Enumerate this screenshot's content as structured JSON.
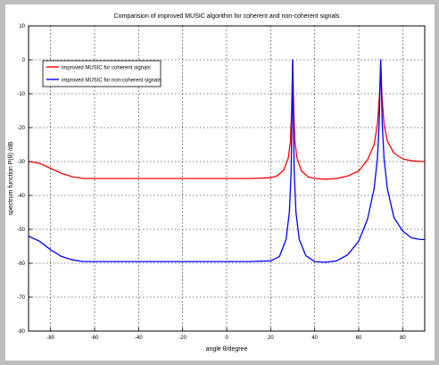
{
  "chart_data": {
    "type": "line",
    "title": "Comparision of improved MUSIC algorithm for coherent and non-coherent signals",
    "xlabel": "angle θ/degree",
    "ylabel": "spectrum function P(θ) /dB",
    "xlim": [
      -90,
      90
    ],
    "ylim": [
      -80,
      10
    ],
    "xticks": [
      "-80",
      "-60",
      "-40",
      "-20",
      "0",
      "20",
      "40",
      "60",
      "80"
    ],
    "yticks": [
      "10",
      "0",
      "-10",
      "-20",
      "-30",
      "-40",
      "-50",
      "-60",
      "-70",
      "-80"
    ],
    "grid": true,
    "legend_position": "top-left",
    "series": [
      {
        "name": "improved MUSIC for coherent signals",
        "color": "#ff0000",
        "x": [
          -90,
          -85,
          -80,
          -75,
          -70,
          -65,
          -60,
          -40,
          -20,
          0,
          10,
          20,
          23,
          26,
          28,
          29,
          29.5,
          30,
          30.5,
          31,
          32,
          34,
          37,
          40,
          45,
          50,
          55,
          60,
          64,
          67,
          68.5,
          69.5,
          70,
          70.5,
          71.5,
          73,
          76,
          80,
          84,
          88,
          90
        ],
        "values": [
          -30,
          -30.5,
          -32,
          -33.5,
          -34.5,
          -35,
          -35,
          -35,
          -35,
          -35,
          -35,
          -34.8,
          -34.2,
          -32.5,
          -29,
          -24,
          -15,
          0,
          -15,
          -24,
          -29,
          -32.8,
          -34.5,
          -35,
          -35.2,
          -35,
          -34.3,
          -32.8,
          -29.5,
          -25,
          -19,
          -10,
          0,
          -10,
          -19,
          -24,
          -27.5,
          -29.2,
          -29.8,
          -30,
          -30
        ]
      },
      {
        "name": "improved MUSIC for non-coherent signals",
        "color": "#0000ff",
        "x": [
          -90,
          -85,
          -80,
          -75,
          -70,
          -65,
          -60,
          -40,
          -20,
          0,
          10,
          20,
          24,
          27,
          28.5,
          29.3,
          29.7,
          30,
          30.3,
          30.7,
          31.5,
          33,
          36,
          40,
          45,
          50,
          55,
          60,
          64,
          67,
          68.5,
          69.3,
          69.7,
          70,
          70.3,
          70.7,
          71.5,
          73,
          76,
          80,
          84,
          88,
          90
        ],
        "values": [
          -52,
          -53.5,
          -56,
          -58,
          -59,
          -59.5,
          -59.5,
          -59.5,
          -59.5,
          -59.5,
          -59.5,
          -59.3,
          -58,
          -53,
          -45,
          -33,
          -15,
          0,
          -15,
          -33,
          -45,
          -53,
          -57.8,
          -59.5,
          -59.7,
          -59.3,
          -57.5,
          -53.5,
          -47,
          -38,
          -29,
          -19,
          -8,
          0,
          -8,
          -19,
          -29,
          -38,
          -46.5,
          -50.5,
          -52.5,
          -53,
          -53
        ]
      }
    ]
  }
}
